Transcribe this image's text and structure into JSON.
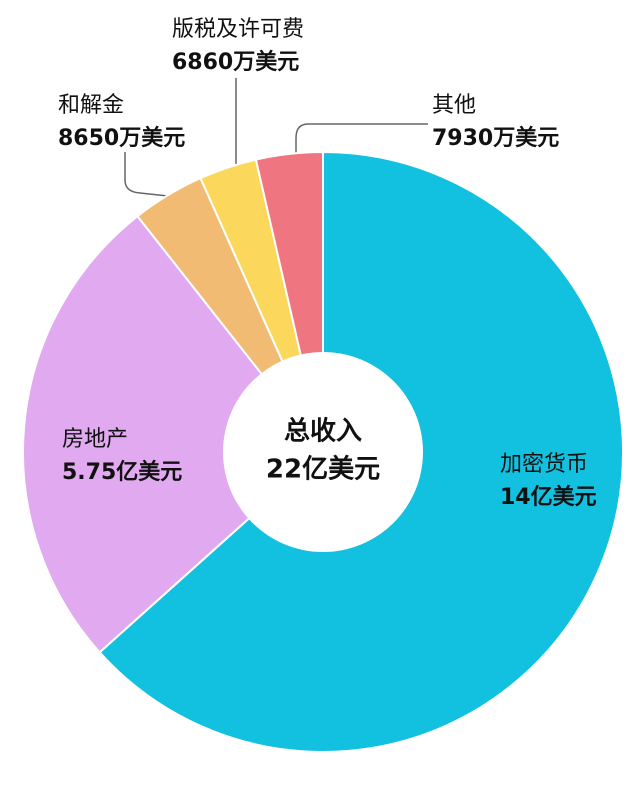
{
  "chart_data": {
    "type": "donut",
    "categories": [
      "加密货币",
      "房地产",
      "和解金",
      "版税及许可费",
      "其他"
    ],
    "values": [
      140000,
      57500,
      8650,
      6860,
      7930
    ],
    "value_labels": [
      "14亿美元",
      "5.75亿美元",
      "8650万美元",
      "6860万美元",
      "7930万美元"
    ],
    "colors": [
      "#12c0e0",
      "#e1a9ef",
      "#f2bb73",
      "#fbd85b",
      "#ef7581"
    ],
    "center_title": "总收入",
    "total": 220000,
    "total_label": "22亿美元"
  }
}
